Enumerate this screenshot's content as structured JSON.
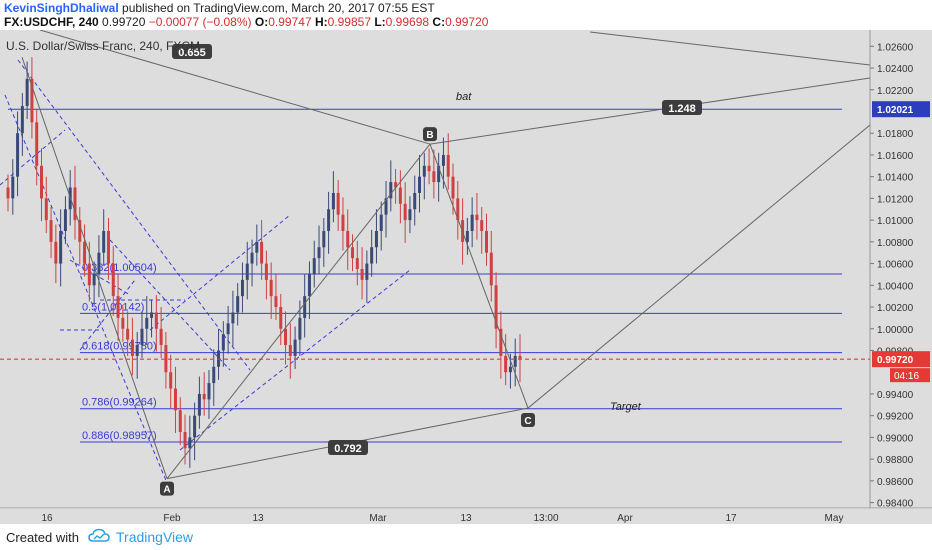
{
  "header": {
    "author": "KevinSinghDhaliwal",
    "published": "published on TradingView.com, March 20, 2017 07:55 EST",
    "symbol": "FX:USDCHF, 240",
    "last": "0.99720",
    "change": "−0.00077 (−0.08%)",
    "o_label": "O:",
    "o": "0.99747",
    "h_label": "H:",
    "h": "0.99857",
    "l_label": "L:",
    "l": "0.99698",
    "c_label": "C:",
    "c": "0.99720"
  },
  "footer": {
    "created": "Created with",
    "brand": "TradingView"
  },
  "colors": {
    "background": "#dddddd",
    "fib_line": "#3a3ad6",
    "channel": "#3a3adf",
    "pattern": "#666666",
    "up_candle": "#3a4a78",
    "down_candle": "#d04040",
    "price_line": "#e53935",
    "label_bg": "#3d3d3d"
  },
  "chart_data": {
    "type": "candlestick",
    "title": "U.S. Dollar/Swiss Franc, 240, FXCM",
    "ylim": [
      0.9835,
      1.0275
    ],
    "yticks": [
      "1.02600",
      "1.02400",
      "1.02200",
      "1.01800",
      "1.01600",
      "1.01400",
      "1.01200",
      "1.01000",
      "1.00800",
      "1.00600",
      "1.00400",
      "1.00200",
      "1.00000",
      "0.99800",
      "0.99400",
      "0.99200",
      "0.99000",
      "0.98800",
      "0.98600",
      "0.98400"
    ],
    "xticks": [
      "16",
      "Feb",
      "13",
      "Mar",
      "13",
      "13:00",
      "Apr",
      "17",
      "May"
    ],
    "current_price": "0.99720",
    "countdown": "04:16",
    "highlight_price": "1.02021",
    "fib_levels": [
      {
        "label": "0.382(1.00504)",
        "value": 1.00504
      },
      {
        "label": "0.5(1.00142)",
        "value": 1.00142
      },
      {
        "label": "0.618(0.99780)",
        "value": 0.9978
      },
      {
        "label": "0.786(0.99264)",
        "value": 0.99264
      },
      {
        "label": "0.886(0.98957)",
        "value": 0.98957
      },
      {
        "label": "",
        "value": 1.02021
      }
    ],
    "pattern_points": [
      {
        "label": "A",
        "value": 0.9862
      },
      {
        "label": "B",
        "value": 1.017
      },
      {
        "label": "C",
        "value": 0.9927
      }
    ],
    "ratios": [
      "0.655",
      "1.248",
      "0.792"
    ],
    "annotations": [
      "bat",
      "Target"
    ],
    "candles_close": [
      1.012,
      1.014,
      1.018,
      1.0205,
      1.023,
      1.019,
      1.015,
      1.012,
      1.01,
      1.008,
      1.006,
      1.009,
      1.011,
      1.013,
      1.01,
      1.008,
      1.006,
      1.004,
      1.005,
      1.007,
      1.009,
      1.006,
      1.003,
      1.001,
      1.0,
      0.999,
      0.9975,
      0.9985,
      1.0,
      1.001,
      1.0015,
      1.0,
      0.9985,
      0.996,
      0.9945,
      0.9925,
      0.9905,
      0.989,
      0.99,
      0.992,
      0.994,
      0.9935,
      0.995,
      0.9965,
      0.998,
      0.9995,
      1.0005,
      1.0015,
      1.003,
      1.0045,
      1.006,
      1.007,
      1.008,
      1.006,
      1.0045,
      1.003,
      1.002,
      1.0,
      0.9985,
      0.9975,
      0.999,
      1.001,
      1.003,
      1.005,
      1.0065,
      1.0075,
      1.009,
      1.011,
      1.0125,
      1.0105,
      1.009,
      1.0075,
      1.0065,
      1.0055,
      1.0045,
      1.006,
      1.0075,
      1.009,
      1.0105,
      1.012,
      1.0135,
      1.013,
      1.0115,
      1.01,
      1.011,
      1.0125,
      1.014,
      1.015,
      1.0145,
      1.0135,
      1.015,
      1.016,
      1.014,
      1.012,
      1.01,
      1.008,
      1.009,
      1.0105,
      1.01,
      1.009,
      1.007,
      1.004,
      1.0,
      0.9975,
      0.996,
      0.9965,
      0.9975,
      0.9972
    ]
  }
}
